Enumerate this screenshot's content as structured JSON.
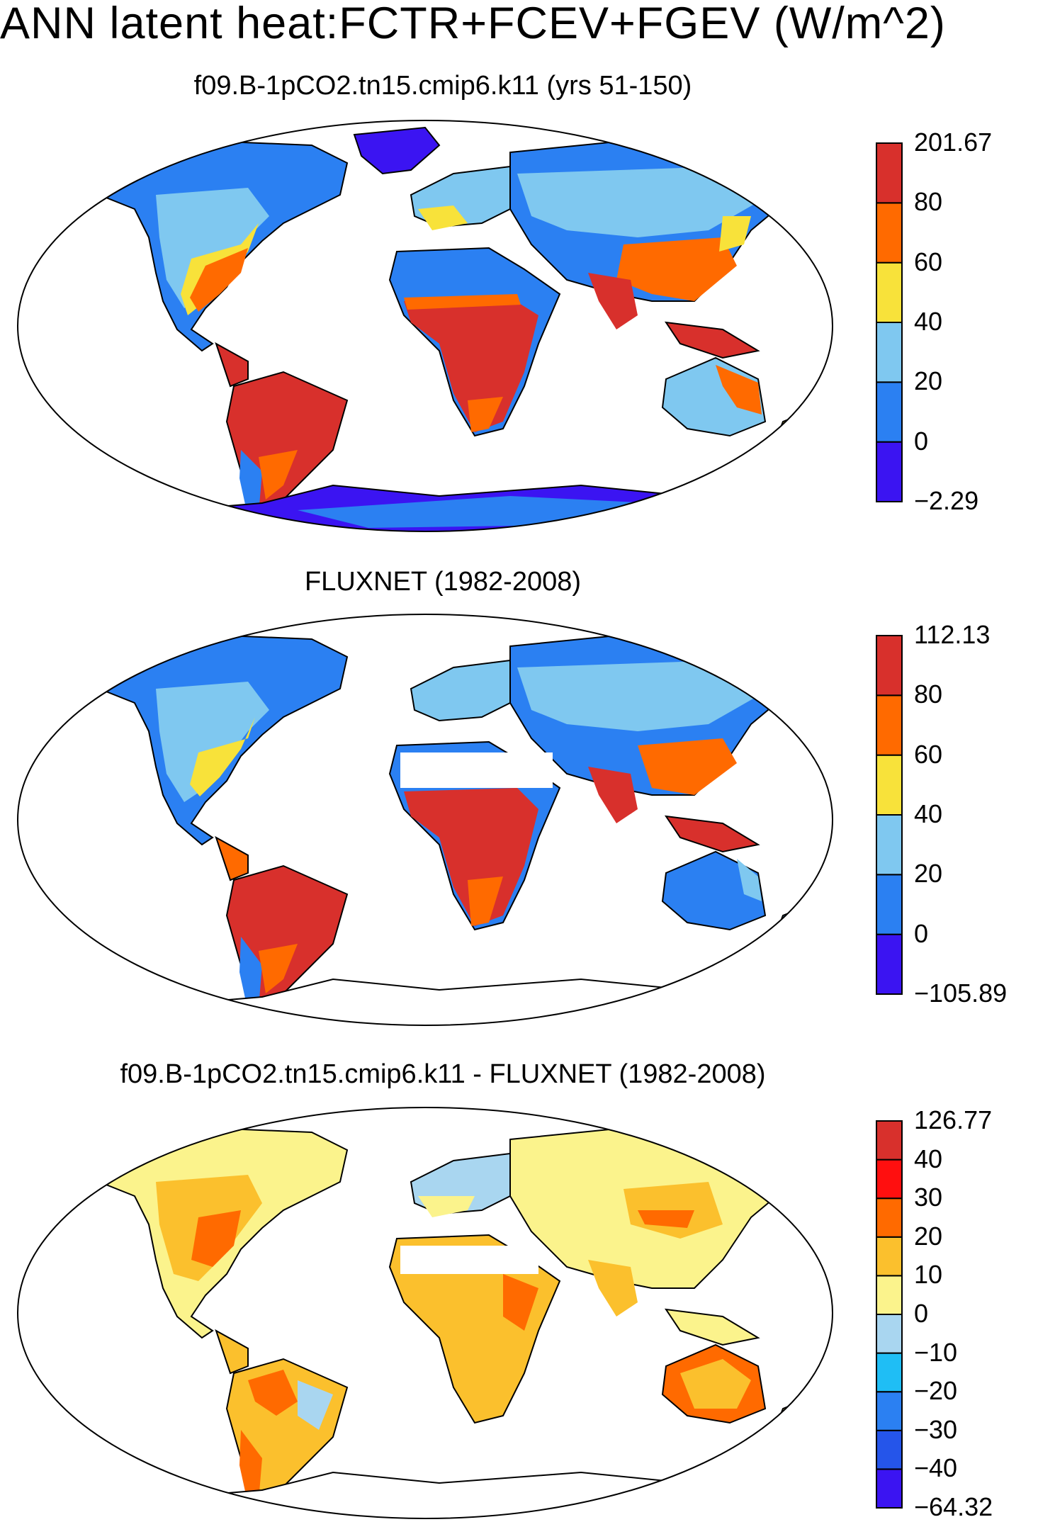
{
  "main_title": "ANN latent heat:FCTR+FCEV+FGEV (W/m^2)",
  "panels": [
    {
      "title": "f09.B-1pCO2.tn15.cmip6.k11 (yrs 51-150)",
      "colorbar": {
        "colors": [
          "#3b14f2",
          "#2b80f2",
          "#7fc8f0",
          "#f8e23a",
          "#ff6a00",
          "#d8302c"
        ],
        "labels": [
          "201.67",
          "80",
          "60",
          "40",
          "20",
          "0",
          "−2.29"
        ]
      }
    },
    {
      "title": "FLUXNET (1982-2008)",
      "colorbar": {
        "colors": [
          "#3b14f2",
          "#2b80f2",
          "#7fc8f0",
          "#f8e23a",
          "#ff6a00",
          "#d8302c"
        ],
        "labels": [
          "112.13",
          "80",
          "60",
          "40",
          "20",
          "0",
          "−105.89"
        ]
      }
    },
    {
      "title": "f09.B-1pCO2.tn15.cmip6.k11 - FLUXNET (1982-2008)",
      "colorbar": {
        "colors": [
          "#3b14f2",
          "#2555ea",
          "#2b80f2",
          "#1fbef5",
          "#a9d6f0",
          "#fbf38c",
          "#fbc02d",
          "#ff6a00",
          "#ff0f0f",
          "#d8302c"
        ],
        "labels": [
          "126.77",
          "40",
          "30",
          "20",
          "10",
          "0",
          "−10",
          "−20",
          "−30",
          "−40",
          "−64.32"
        ]
      }
    }
  ]
}
